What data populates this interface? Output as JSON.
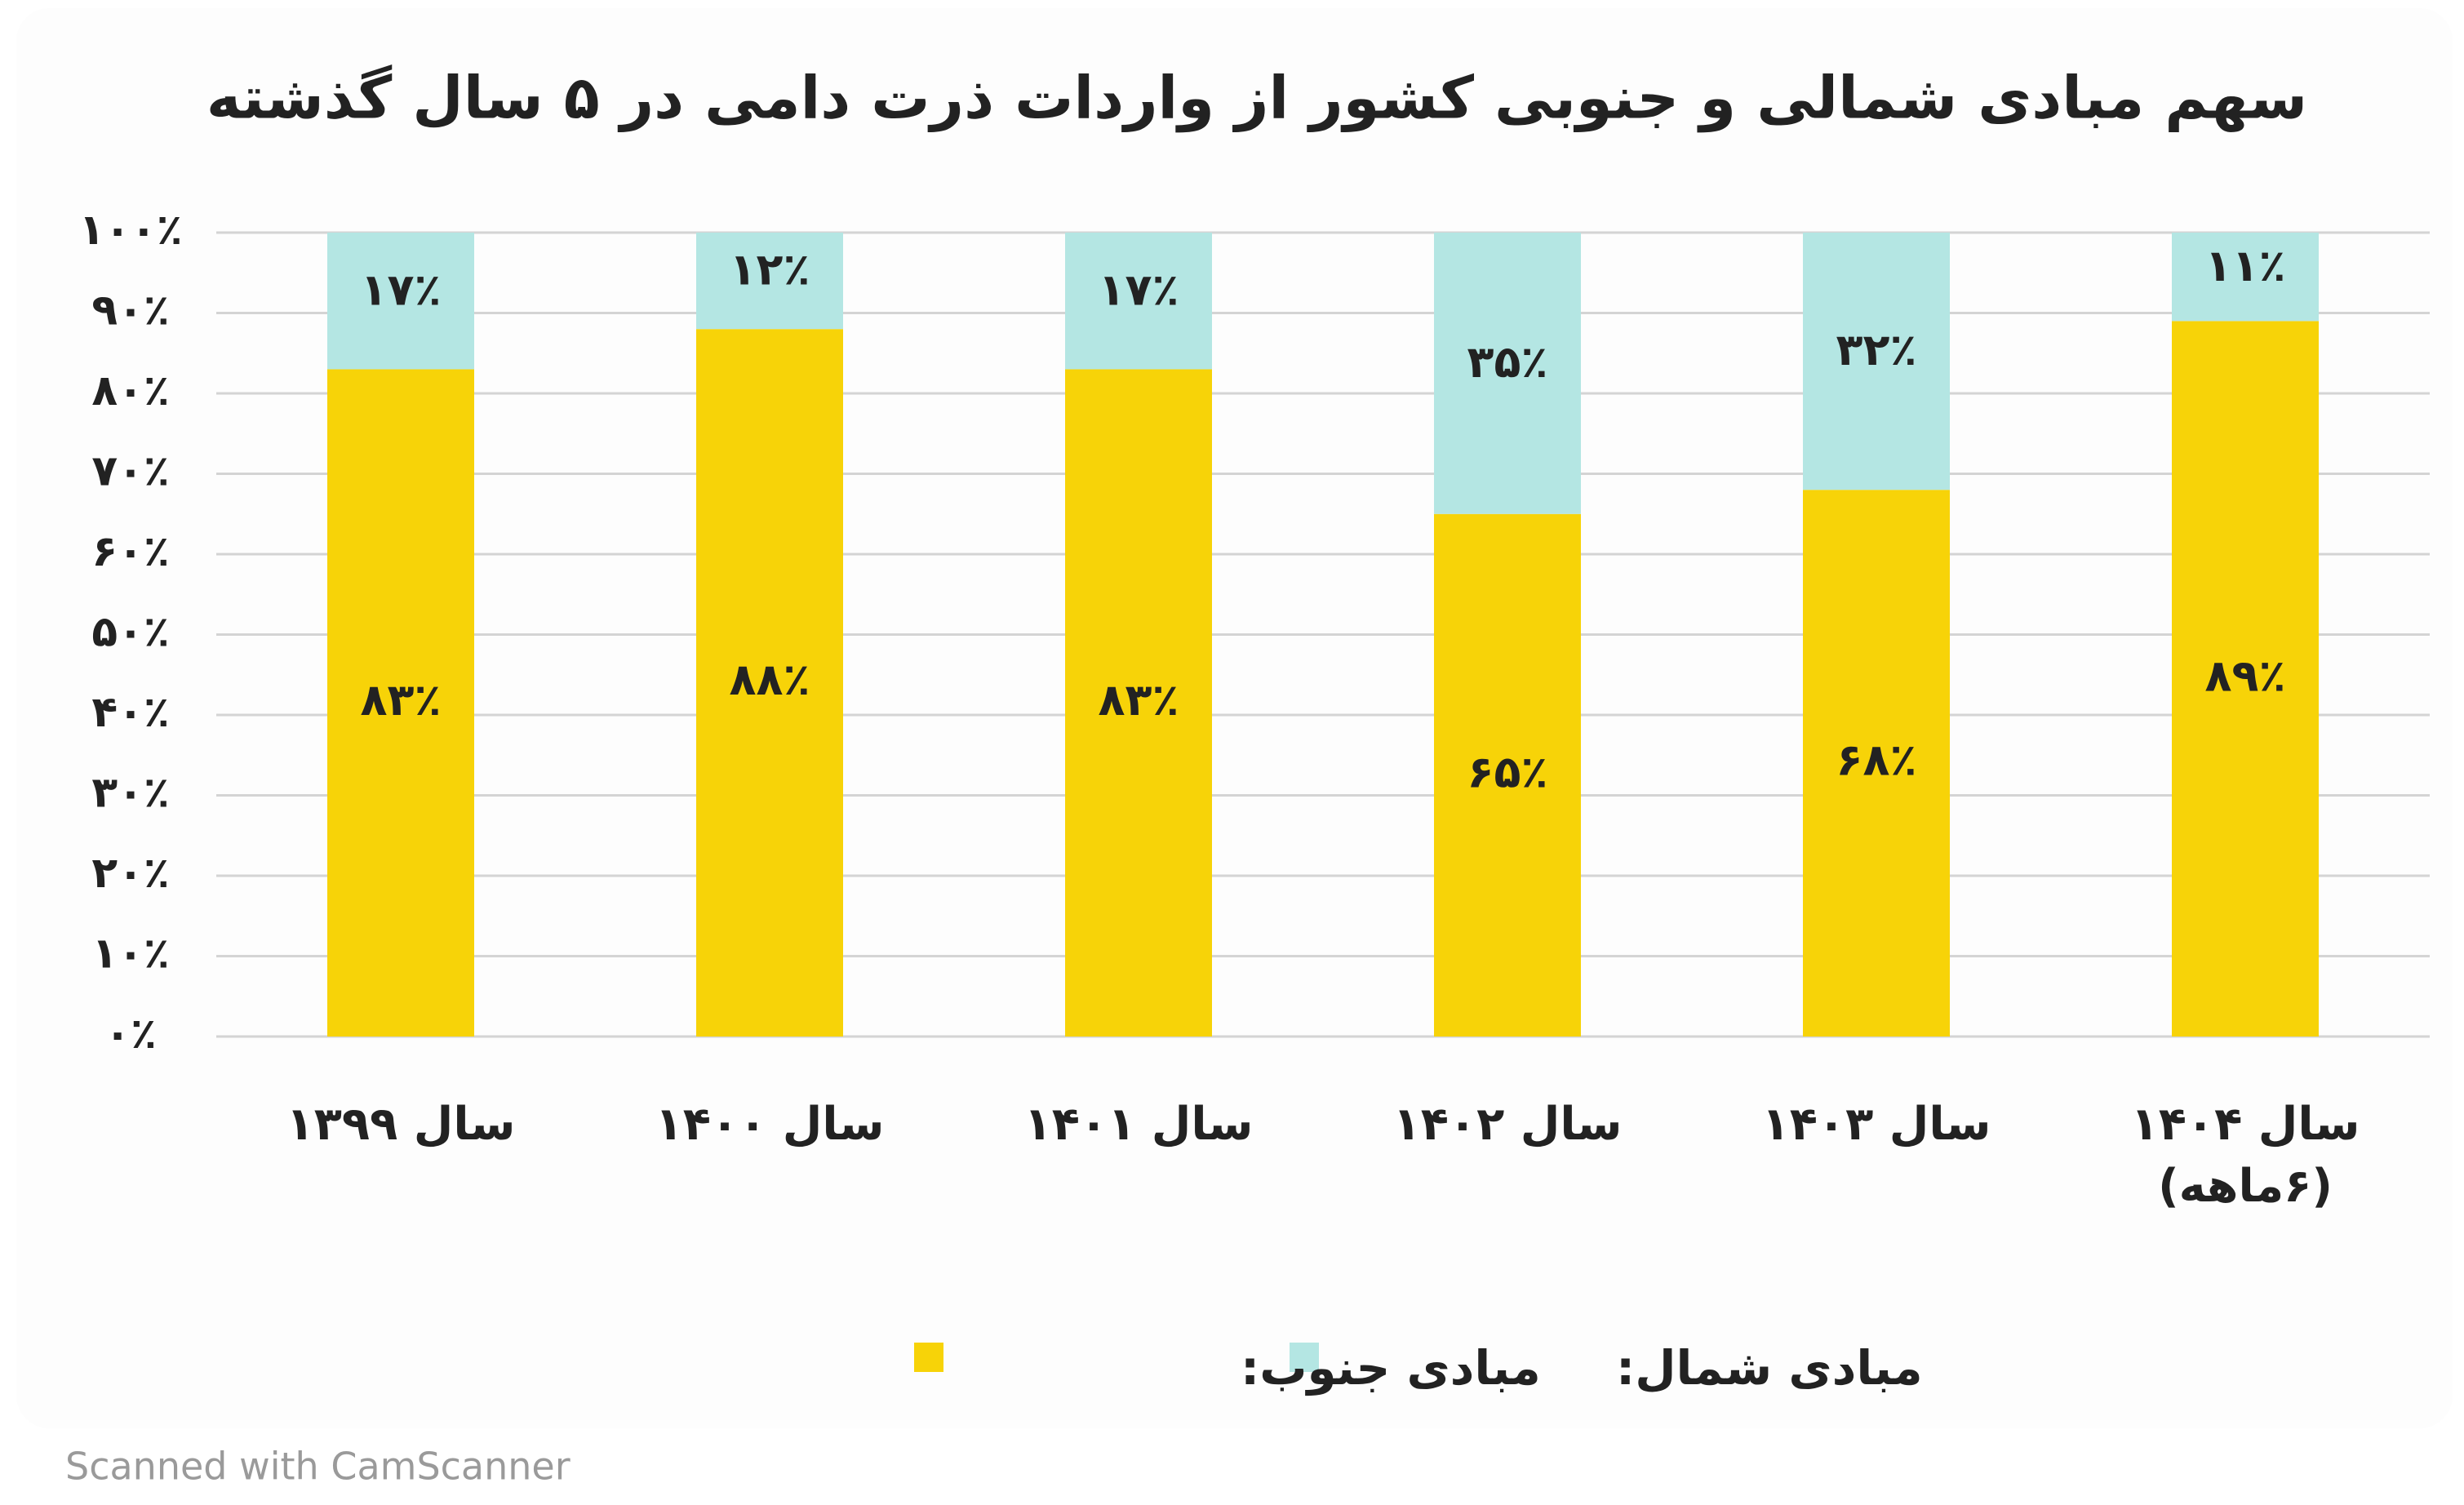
{
  "chart_data": {
    "type": "stacked_bar",
    "title": "سهم مبادی شمالی و جنوبی کشور از واردات ذرت دامی در ۵ سال گذشته",
    "categories": [
      "سال ۱۳۹۹",
      "سال ۱۴۰۰",
      "سال ۱۴۰۱",
      "سال ۱۴۰۲",
      "سال ۱۴۰۳",
      "سال ۱۴۰۴ (۶ماهه)"
    ],
    "series": [
      {
        "name": "مبادی جنوب:",
        "color": "#f7d308",
        "values": [
          83,
          88,
          83,
          65,
          68,
          89
        ],
        "value_labels": [
          "۸۳٪",
          "۸۸٪",
          "۸۳٪",
          "۶۵٪",
          "۶۸٪",
          "۸۹٪"
        ]
      },
      {
        "name": "مبادی شمال:",
        "color": "#b4e6e3",
        "values": [
          17,
          12,
          17,
          35,
          32,
          11
        ],
        "value_labels": [
          "۱۷٪",
          "۱۲٪",
          "۱۷٪",
          "۳۵٪",
          "۳۲٪",
          "۱۱٪"
        ]
      }
    ],
    "ylim": [
      0,
      100
    ],
    "yticks": [
      {
        "value": 0,
        "label": "۰٪"
      },
      {
        "value": 10,
        "label": "۱۰٪"
      },
      {
        "value": 20,
        "label": "۲۰٪"
      },
      {
        "value": 30,
        "label": "۳۰٪"
      },
      {
        "value": 40,
        "label": "۴۰٪"
      },
      {
        "value": 50,
        "label": "۵۰٪"
      },
      {
        "value": 60,
        "label": "۶۰٪"
      },
      {
        "value": 70,
        "label": "۷۰٪"
      },
      {
        "value": 80,
        "label": "۸۰٪"
      },
      {
        "value": 90,
        "label": "۹۰٪"
      },
      {
        "value": 100,
        "label": "۱۰۰٪"
      }
    ],
    "grid": true
  },
  "watermark": "Scanned with CamScanner"
}
